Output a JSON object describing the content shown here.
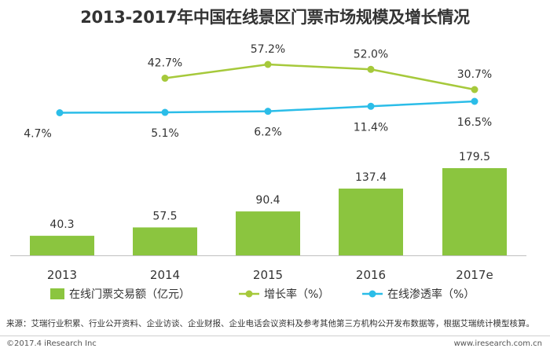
{
  "title": "2013-2017年中国在线景区门票市场规模及增长情况",
  "source": "来源：艾瑞行业积累、行业公开资料、企业访谈、企业财报、企业电话会议资料及参考其他第三方机构公开发布数据等，根据艾瑞统计模型核算。",
  "copyright": "©2017.4 iResearch Inc",
  "website": "www.iresearch.com.cn",
  "colors": {
    "bar": "#8bc53f",
    "growth": "#a6c93b",
    "penetration": "#2bbde8",
    "axis": "#bfbfbf"
  },
  "chart_data": {
    "type": "bar",
    "title": "2013-2017年中国在线景区门票市场规模及增长情况",
    "categories": [
      "2013",
      "2014",
      "2015",
      "2016",
      "2017e"
    ],
    "series": [
      {
        "name": "在线门票交易额（亿元）",
        "type": "bar",
        "values": [
          40.3,
          57.5,
          90.4,
          137.4,
          179.5
        ],
        "labels": [
          "40.3",
          "57.5",
          "90.4",
          "137.4",
          "179.5"
        ]
      },
      {
        "name": "增长率（%）",
        "type": "line",
        "values": [
          null,
          42.7,
          57.2,
          52.0,
          30.7
        ],
        "labels": [
          null,
          "42.7%",
          "57.2%",
          "52.0%",
          "30.7%"
        ]
      },
      {
        "name": "在线渗透率（%）",
        "type": "line",
        "values": [
          4.7,
          5.1,
          6.2,
          11.4,
          16.5
        ],
        "labels": [
          "4.7%",
          "5.1%",
          "6.2%",
          "11.4%",
          "16.5%"
        ]
      }
    ],
    "legend_position": "bottom",
    "grid": false
  }
}
